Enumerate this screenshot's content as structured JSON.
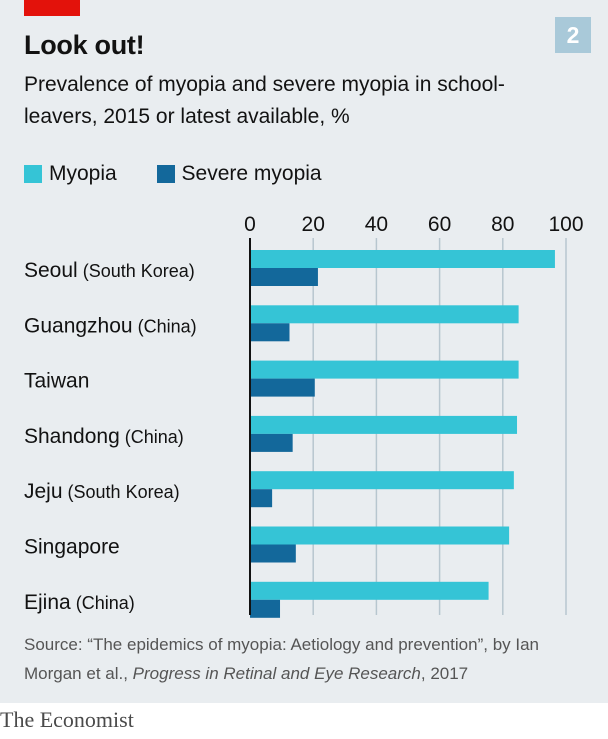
{
  "chart_number": "2",
  "title": "Look out!",
  "subtitle": "Prevalence of myopia and severe myopia in school-leavers, 2015 or latest available, %",
  "colors": {
    "myopia": "#35c4d6",
    "severe": "#13689b",
    "panel": "#e9edf0",
    "brand_red": "#e3120b"
  },
  "chart_data": {
    "type": "bar",
    "orientation": "horizontal",
    "title": "Look out!",
    "xlabel": "",
    "ylabel": "",
    "xlim": [
      0,
      100
    ],
    "ticks": [
      "0",
      "20",
      "40",
      "60",
      "80",
      "100"
    ],
    "tick_values": [
      0,
      20,
      40,
      60,
      80,
      100
    ],
    "legend_position": "top-left",
    "categories": [
      {
        "name": "Seoul",
        "qualifier": "(South Korea)"
      },
      {
        "name": "Guangzhou",
        "qualifier": "(China)"
      },
      {
        "name": "Taiwan",
        "qualifier": ""
      },
      {
        "name": "Shandong",
        "qualifier": "(China)"
      },
      {
        "name": "Jeju",
        "qualifier": "(South Korea)"
      },
      {
        "name": "Singapore",
        "qualifier": ""
      },
      {
        "name": "Ejina",
        "qualifier": "(China)"
      }
    ],
    "series": [
      {
        "name": "Myopia",
        "values": [
          96.5,
          85,
          85,
          84.5,
          83.5,
          82,
          75.5
        ]
      },
      {
        "name": "Severe myopia",
        "values": [
          21.5,
          12.5,
          20.5,
          13.5,
          7,
          14.5,
          9.5
        ]
      }
    ]
  },
  "source": {
    "prefix": "Source: “The epidemics of myopia: Aetiology and prevention”, by Ian Morgan et al., ",
    "journal": "Progress in Retinal and Eye Research",
    "suffix": ", 2017"
  },
  "brand": "The Economist"
}
